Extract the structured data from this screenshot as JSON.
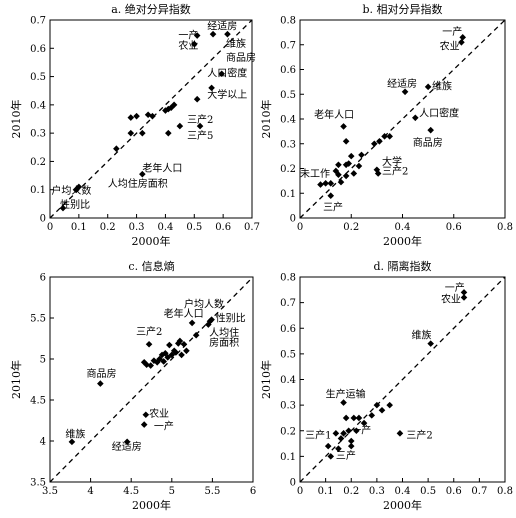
{
  "chart_data": [
    {
      "type": "scatter",
      "title": "a. 绝对分异指数",
      "xlabel": "2000年",
      "ylabel": "2010年",
      "xlim": [
        0,
        0.7
      ],
      "ylim": [
        0,
        0.7
      ],
      "xticks": [
        0,
        0.1,
        0.2,
        0.3,
        0.4,
        0.5,
        0.6,
        0.7
      ],
      "yticks": [
        0,
        0.1,
        0.2,
        0.3,
        0.4,
        0.5,
        0.6,
        0.7
      ],
      "grid": false,
      "reference_line": "y = x",
      "points": [
        {
          "x": 0.045,
          "y": 0.035
        },
        {
          "x": 0.09,
          "y": 0.1
        },
        {
          "x": 0.1,
          "y": 0.11
        },
        {
          "x": 0.23,
          "y": 0.245
        },
        {
          "x": 0.28,
          "y": 0.3
        },
        {
          "x": 0.28,
          "y": 0.355
        },
        {
          "x": 0.3,
          "y": 0.36
        },
        {
          "x": 0.32,
          "y": 0.3
        },
        {
          "x": 0.34,
          "y": 0.365
        },
        {
          "x": 0.355,
          "y": 0.36
        },
        {
          "x": 0.32,
          "y": 0.155
        },
        {
          "x": 0.4,
          "y": 0.38
        },
        {
          "x": 0.41,
          "y": 0.385
        },
        {
          "x": 0.42,
          "y": 0.39
        },
        {
          "x": 0.43,
          "y": 0.4
        },
        {
          "x": 0.41,
          "y": 0.3
        },
        {
          "x": 0.45,
          "y": 0.325
        },
        {
          "x": 0.51,
          "y": 0.42
        },
        {
          "x": 0.52,
          "y": 0.325
        },
        {
          "x": 0.5,
          "y": 0.615
        },
        {
          "x": 0.51,
          "y": 0.645
        },
        {
          "x": 0.56,
          "y": 0.46
        },
        {
          "x": 0.565,
          "y": 0.65
        },
        {
          "x": 0.595,
          "y": 0.51
        },
        {
          "x": 0.615,
          "y": 0.65
        }
      ],
      "annotations": [
        {
          "text": "经适房",
          "x": 0.545,
          "y": 0.667
        },
        {
          "text": "一产",
          "x": 0.445,
          "y": 0.635
        },
        {
          "text": "农业",
          "x": 0.445,
          "y": 0.597
        },
        {
          "text": "维族",
          "x": 0.61,
          "y": 0.605
        },
        {
          "text": "商品房",
          "x": 0.61,
          "y": 0.555
        },
        {
          "text": "人口密度",
          "x": 0.545,
          "y": 0.5
        },
        {
          "text": "大学以上",
          "x": 0.545,
          "y": 0.425
        },
        {
          "text": "三产2",
          "x": 0.475,
          "y": 0.335
        },
        {
          "text": "三产5",
          "x": 0.475,
          "y": 0.28
        },
        {
          "text": "老年人口",
          "x": 0.32,
          "y": 0.165
        },
        {
          "text": "人均住房面积",
          "x": 0.2,
          "y": 0.11
        },
        {
          "text": "户均人数",
          "x": 0.005,
          "y": 0.085
        },
        {
          "text": "性别比",
          "x": 0.035,
          "y": 0.035
        }
      ]
    },
    {
      "type": "scatter",
      "title": "b. 相对分异指数",
      "xlabel": "2000年",
      "ylabel": "2010年",
      "xlim": [
        0,
        0.8
      ],
      "ylim": [
        0,
        0.8
      ],
      "xticks": [
        0,
        0.2,
        0.4,
        0.6,
        0.8
      ],
      "yticks": [
        0,
        0.1,
        0.2,
        0.3,
        0.4,
        0.5,
        0.6,
        0.7,
        0.8
      ],
      "grid": false,
      "reference_line": "y = x",
      "points": [
        {
          "x": 0.08,
          "y": 0.135
        },
        {
          "x": 0.1,
          "y": 0.14
        },
        {
          "x": 0.12,
          "y": 0.14
        },
        {
          "x": 0.12,
          "y": 0.09
        },
        {
          "x": 0.14,
          "y": 0.19
        },
        {
          "x": 0.15,
          "y": 0.175
        },
        {
          "x": 0.15,
          "y": 0.215
        },
        {
          "x": 0.16,
          "y": 0.145
        },
        {
          "x": 0.17,
          "y": 0.37
        },
        {
          "x": 0.18,
          "y": 0.31
        },
        {
          "x": 0.18,
          "y": 0.17
        },
        {
          "x": 0.18,
          "y": 0.215
        },
        {
          "x": 0.19,
          "y": 0.22
        },
        {
          "x": 0.2,
          "y": 0.25
        },
        {
          "x": 0.21,
          "y": 0.18
        },
        {
          "x": 0.23,
          "y": 0.21
        },
        {
          "x": 0.24,
          "y": 0.255
        },
        {
          "x": 0.29,
          "y": 0.3
        },
        {
          "x": 0.3,
          "y": 0.195
        },
        {
          "x": 0.305,
          "y": 0.18
        },
        {
          "x": 0.31,
          "y": 0.31
        },
        {
          "x": 0.33,
          "y": 0.33
        },
        {
          "x": 0.35,
          "y": 0.33
        },
        {
          "x": 0.41,
          "y": 0.51
        },
        {
          "x": 0.45,
          "y": 0.405
        },
        {
          "x": 0.5,
          "y": 0.53
        },
        {
          "x": 0.51,
          "y": 0.355
        },
        {
          "x": 0.63,
          "y": 0.71
        },
        {
          "x": 0.635,
          "y": 0.73
        }
      ],
      "annotations": [
        {
          "text": "一产",
          "x": 0.555,
          "y": 0.74
        },
        {
          "text": "农业",
          "x": 0.545,
          "y": 0.68
        },
        {
          "text": "经适房",
          "x": 0.34,
          "y": 0.53
        },
        {
          "text": "维族",
          "x": 0.515,
          "y": 0.52
        },
        {
          "text": "人口密度",
          "x": 0.465,
          "y": 0.41
        },
        {
          "text": "商品房",
          "x": 0.44,
          "y": 0.29
        },
        {
          "text": "老年人口",
          "x": 0.055,
          "y": 0.405
        },
        {
          "text": "大学",
          "x": 0.32,
          "y": 0.215
        },
        {
          "text": "三产2",
          "x": 0.32,
          "y": 0.175
        },
        {
          "text": "未工作",
          "x": 0.0,
          "y": 0.165
        },
        {
          "text": "三产",
          "x": 0.09,
          "y": 0.03
        }
      ]
    },
    {
      "type": "scatter",
      "title": "c. 信息熵",
      "xlabel": "2000年",
      "ylabel": "2010年",
      "xlim": [
        3.5,
        6
      ],
      "ylim": [
        3.5,
        6
      ],
      "xticks": [
        3.5,
        4,
        4.5,
        5,
        5.5,
        6
      ],
      "yticks": [
        3.5,
        4,
        4.5,
        5,
        5.5,
        6
      ],
      "grid": false,
      "reference_line": "y = x",
      "points": [
        {
          "x": 3.77,
          "y": 3.99
        },
        {
          "x": 4.12,
          "y": 4.7
        },
        {
          "x": 4.45,
          "y": 3.99
        },
        {
          "x": 4.66,
          "y": 4.2
        },
        {
          "x": 4.68,
          "y": 4.32
        },
        {
          "x": 4.66,
          "y": 4.96
        },
        {
          "x": 4.69,
          "y": 4.93
        },
        {
          "x": 4.72,
          "y": 5.18
        },
        {
          "x": 4.74,
          "y": 4.92
        },
        {
          "x": 4.78,
          "y": 4.98
        },
        {
          "x": 4.82,
          "y": 4.96
        },
        {
          "x": 4.85,
          "y": 5.0
        },
        {
          "x": 4.88,
          "y": 5.05
        },
        {
          "x": 4.9,
          "y": 4.97
        },
        {
          "x": 4.92,
          "y": 5.07
        },
        {
          "x": 4.95,
          "y": 5.02
        },
        {
          "x": 4.97,
          "y": 5.17
        },
        {
          "x": 5.0,
          "y": 5.05
        },
        {
          "x": 5.03,
          "y": 5.1
        },
        {
          "x": 5.05,
          "y": 5.08
        },
        {
          "x": 5.08,
          "y": 5.19
        },
        {
          "x": 5.1,
          "y": 5.22
        },
        {
          "x": 5.12,
          "y": 5.05
        },
        {
          "x": 5.15,
          "y": 5.18
        },
        {
          "x": 5.18,
          "y": 5.1
        },
        {
          "x": 5.25,
          "y": 5.44
        },
        {
          "x": 5.3,
          "y": 5.29
        },
        {
          "x": 5.45,
          "y": 5.42
        },
        {
          "x": 5.47,
          "y": 5.46
        },
        {
          "x": 5.49,
          "y": 5.48
        }
      ],
      "annotations": [
        {
          "text": "户均人数",
          "x": 5.15,
          "y": 5.63
        },
        {
          "text": "老年人口",
          "x": 4.9,
          "y": 5.51
        },
        {
          "text": "性别比",
          "x": 5.54,
          "y": 5.46
        },
        {
          "text": "三产2",
          "x": 4.56,
          "y": 5.29
        },
        {
          "text": "人均住",
          "x": 5.46,
          "y": 5.28
        },
        {
          "text": "房面积",
          "x": 5.46,
          "y": 5.16
        },
        {
          "text": "商品房",
          "x": 3.95,
          "y": 4.78
        },
        {
          "text": "农业",
          "x": 4.72,
          "y": 4.29
        },
        {
          "text": "一产",
          "x": 4.78,
          "y": 4.14
        },
        {
          "text": "维族",
          "x": 3.69,
          "y": 4.04
        },
        {
          "text": "经适房",
          "x": 4.26,
          "y": 3.89
        }
      ]
    },
    {
      "type": "scatter",
      "title": "d. 隔离指数",
      "xlabel": "2000年",
      "ylabel": "2010年",
      "xlim": [
        0,
        0.8
      ],
      "ylim": [
        0,
        0.8
      ],
      "xticks": [
        0,
        0.1,
        0.2,
        0.3,
        0.4,
        0.5,
        0.6,
        0.7,
        0.8
      ],
      "yticks": [
        0,
        0.1,
        0.2,
        0.3,
        0.4,
        0.5,
        0.6,
        0.7,
        0.8
      ],
      "grid": false,
      "reference_line": "y = x",
      "points": [
        {
          "x": 0.11,
          "y": 0.14
        },
        {
          "x": 0.12,
          "y": 0.1
        },
        {
          "x": 0.14,
          "y": 0.19
        },
        {
          "x": 0.15,
          "y": 0.13
        },
        {
          "x": 0.16,
          "y": 0.17
        },
        {
          "x": 0.17,
          "y": 0.19
        },
        {
          "x": 0.17,
          "y": 0.31
        },
        {
          "x": 0.18,
          "y": 0.25
        },
        {
          "x": 0.19,
          "y": 0.2
        },
        {
          "x": 0.2,
          "y": 0.16
        },
        {
          "x": 0.2,
          "y": 0.14
        },
        {
          "x": 0.21,
          "y": 0.25
        },
        {
          "x": 0.22,
          "y": 0.2
        },
        {
          "x": 0.23,
          "y": 0.25
        },
        {
          "x": 0.25,
          "y": 0.23
        },
        {
          "x": 0.28,
          "y": 0.26
        },
        {
          "x": 0.3,
          "y": 0.3
        },
        {
          "x": 0.32,
          "y": 0.28
        },
        {
          "x": 0.35,
          "y": 0.3
        },
        {
          "x": 0.39,
          "y": 0.19
        },
        {
          "x": 0.51,
          "y": 0.54
        },
        {
          "x": 0.64,
          "y": 0.72
        },
        {
          "x": 0.64,
          "y": 0.74
        }
      ],
      "annotations": [
        {
          "text": "一产",
          "x": 0.565,
          "y": 0.745
        },
        {
          "text": "农业",
          "x": 0.55,
          "y": 0.7
        },
        {
          "text": "维族",
          "x": 0.435,
          "y": 0.56
        },
        {
          "text": "生产运输",
          "x": 0.1,
          "y": 0.33
        },
        {
          "text": "三产1",
          "x": 0.02,
          "y": 0.17
        },
        {
          "text": "一产",
          "x": 0.2,
          "y": 0.19
        },
        {
          "text": "三产2",
          "x": 0.415,
          "y": 0.17
        },
        {
          "text": "三产",
          "x": 0.14,
          "y": 0.09
        }
      ]
    }
  ]
}
